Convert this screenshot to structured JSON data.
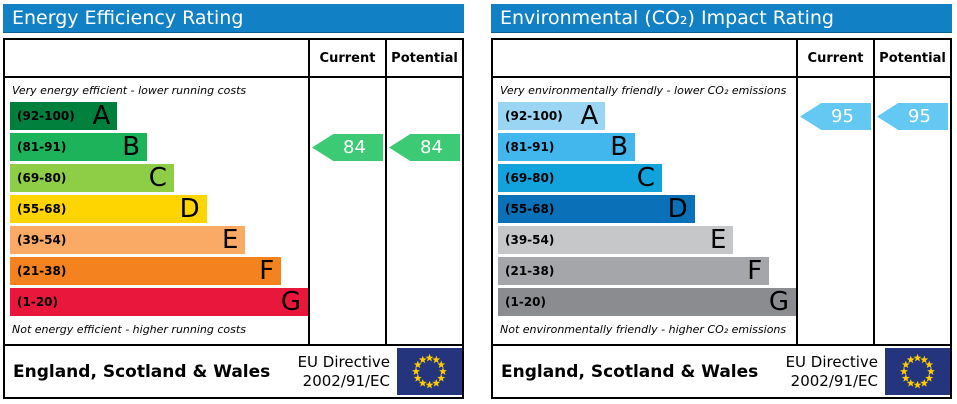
{
  "colors": {
    "header_bg": "#1280c4",
    "header_text": "#ffffff",
    "border": "#000000"
  },
  "chart_data": [
    {
      "type": "bar",
      "title": "Energy Efficiency Rating",
      "columns": {
        "current": "Current",
        "potential": "Potential"
      },
      "top_caption": "Very energy efficient - lower running costs",
      "bottom_caption": "Not energy efficient - higher running costs",
      "bands": [
        {
          "grade": "A",
          "range": "(92-100)",
          "min": 92,
          "max": 100,
          "color": "#007f3d",
          "width_pct": 36
        },
        {
          "grade": "B",
          "range": "(81-91)",
          "min": 81,
          "max": 91,
          "color": "#1db35b",
          "width_pct": 46
        },
        {
          "grade": "C",
          "range": "(69-80)",
          "min": 69,
          "max": 80,
          "color": "#8dce46",
          "width_pct": 55
        },
        {
          "grade": "D",
          "range": "(55-68)",
          "min": 55,
          "max": 68,
          "color": "#ffd500",
          "width_pct": 66
        },
        {
          "grade": "E",
          "range": "(39-54)",
          "min": 39,
          "max": 54,
          "color": "#fbaa65",
          "width_pct": 79
        },
        {
          "grade": "F",
          "range": "(21-38)",
          "min": 21,
          "max": 38,
          "color": "#f3821f",
          "width_pct": 91
        },
        {
          "grade": "G",
          "range": "(1-20)",
          "min": 1,
          "max": 20,
          "color": "#e9173c",
          "width_pct": 100
        }
      ],
      "current": {
        "value": 84,
        "grade": "B",
        "arrow_color": "#3ccb74"
      },
      "potential": {
        "value": 84,
        "grade": "B",
        "arrow_color": "#3ccb74"
      },
      "footer": {
        "region": "England, Scotland & Wales",
        "directive_line1": "EU Directive",
        "directive_line2": "2002/91/EC",
        "flag_icon": "eu-flag",
        "flag_bg": "#24357d",
        "star_color": "#ffcc00"
      }
    },
    {
      "type": "bar",
      "title": "Environmental (CO₂) Impact Rating",
      "columns": {
        "current": "Current",
        "potential": "Potential"
      },
      "top_caption": "Very environmentally friendly - lower CO₂ emissions",
      "bottom_caption": "Not environmentally friendly - higher CO₂ emissions",
      "bands": [
        {
          "grade": "A",
          "range": "(92-100)",
          "min": 92,
          "max": 100,
          "color": "#9ad6f4",
          "width_pct": 36
        },
        {
          "grade": "B",
          "range": "(81-91)",
          "min": 81,
          "max": 91,
          "color": "#41b7ee",
          "width_pct": 46
        },
        {
          "grade": "C",
          "range": "(69-80)",
          "min": 69,
          "max": 80,
          "color": "#12a3dd",
          "width_pct": 55
        },
        {
          "grade": "D",
          "range": "(55-68)",
          "min": 55,
          "max": 68,
          "color": "#0a70b8",
          "width_pct": 66
        },
        {
          "grade": "E",
          "range": "(39-54)",
          "min": 39,
          "max": 54,
          "color": "#c6c7c9",
          "width_pct": 79
        },
        {
          "grade": "F",
          "range": "(21-38)",
          "min": 21,
          "max": 38,
          "color": "#a4a6a9",
          "width_pct": 91
        },
        {
          "grade": "G",
          "range": "(1-20)",
          "min": 1,
          "max": 20,
          "color": "#8a8c8f",
          "width_pct": 100
        }
      ],
      "current": {
        "value": 95,
        "grade": "A",
        "arrow_color": "#63c8f2"
      },
      "potential": {
        "value": 95,
        "grade": "A",
        "arrow_color": "#63c8f2"
      },
      "footer": {
        "region": "England, Scotland & Wales",
        "directive_line1": "EU Directive",
        "directive_line2": "2002/91/EC",
        "flag_icon": "eu-flag",
        "flag_bg": "#24357d",
        "star_color": "#ffcc00"
      }
    }
  ]
}
